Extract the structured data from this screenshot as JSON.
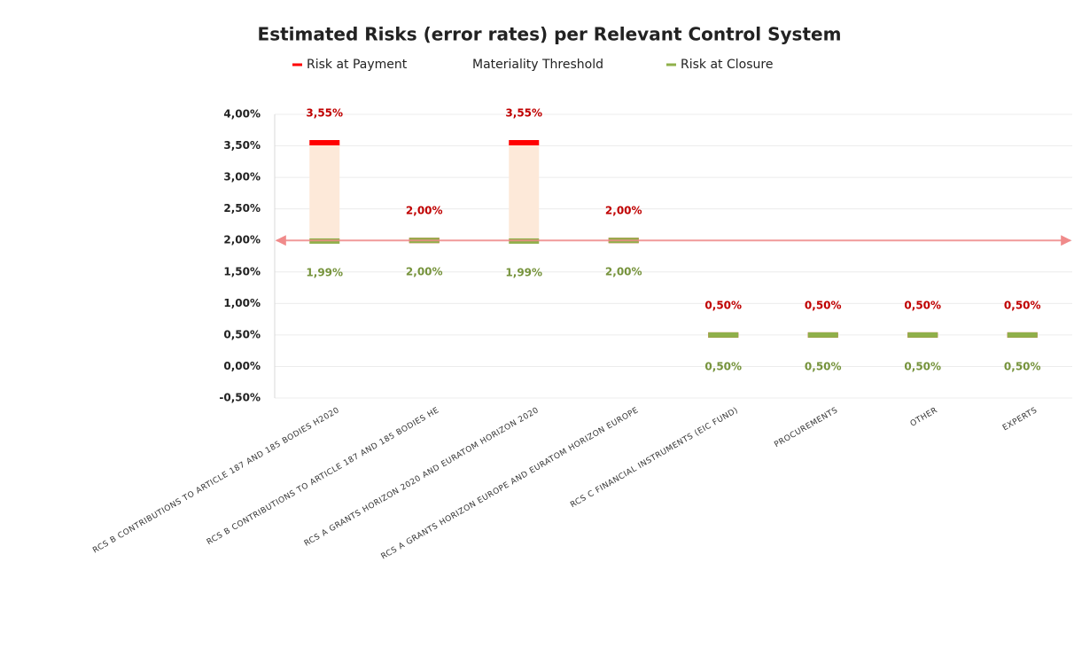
{
  "chart_data": {
    "type": "range-markers",
    "title": "Estimated Risks (error rates) per Relevant Control System",
    "categories": [
      "RCS B CONTRIBUTIONS TO ARTICLE 187 AND 185 BODIES H2020",
      "RCS B CONTRIBUTIONS TO ARTICLE 187 AND 185 BODIES HE",
      "RCS A GRANTS HORIZON 2020 AND EURATOM HORIZON 2020",
      "RCS A GRANTS HORIZON EUROPE AND  EURATOM HORIZON EUROPE",
      "RCS C FINANCIAL INSTRUMENTS (EIC FUND)",
      "PROCUREMENTS",
      "OTHER",
      "EXPERTS"
    ],
    "series": [
      {
        "name": "Risk at Payment",
        "color": "#ff0000",
        "label_color": "#c00000",
        "values": [
          3.55,
          2.0,
          3.55,
          2.0,
          0.5,
          0.5,
          0.5,
          0.5
        ],
        "value_labels": [
          "3,55%",
          "2,00%",
          "3,55%",
          "2,00%",
          "0,50%",
          "0,50%",
          "0,50%",
          "0,50%"
        ]
      },
      {
        "name": "Risk at Closure",
        "color": "#8fb04a",
        "label_color": "#76933c",
        "values": [
          1.99,
          2.0,
          1.99,
          2.0,
          0.5,
          0.5,
          0.5,
          0.5
        ],
        "value_labels": [
          "1,99%",
          "2,00%",
          "1,99%",
          "2,00%",
          "0,50%",
          "0,50%",
          "0,50%",
          "0,50%"
        ]
      }
    ],
    "threshold": {
      "name": "Materiality Threshold",
      "value": 2.0,
      "color": "#f08a8a"
    },
    "range_fill": "#fde9d9",
    "ylim": [
      -0.5,
      4.0
    ],
    "yticks": [
      {
        "value": -0.5,
        "label": "-0,50%"
      },
      {
        "value": 0,
        "label": "0,00%"
      },
      {
        "value": 0.5,
        "label": "0,50%"
      },
      {
        "value": 1.0,
        "label": "1,00%"
      },
      {
        "value": 1.5,
        "label": "1,50%"
      },
      {
        "value": 2.0,
        "label": "2,00%"
      },
      {
        "value": 2.5,
        "label": "2,50%"
      },
      {
        "value": 3.0,
        "label": "3,00%"
      },
      {
        "value": 3.5,
        "label": "3,50%"
      },
      {
        "value": 4.0,
        "label": "4,00%"
      }
    ],
    "grid": true
  }
}
